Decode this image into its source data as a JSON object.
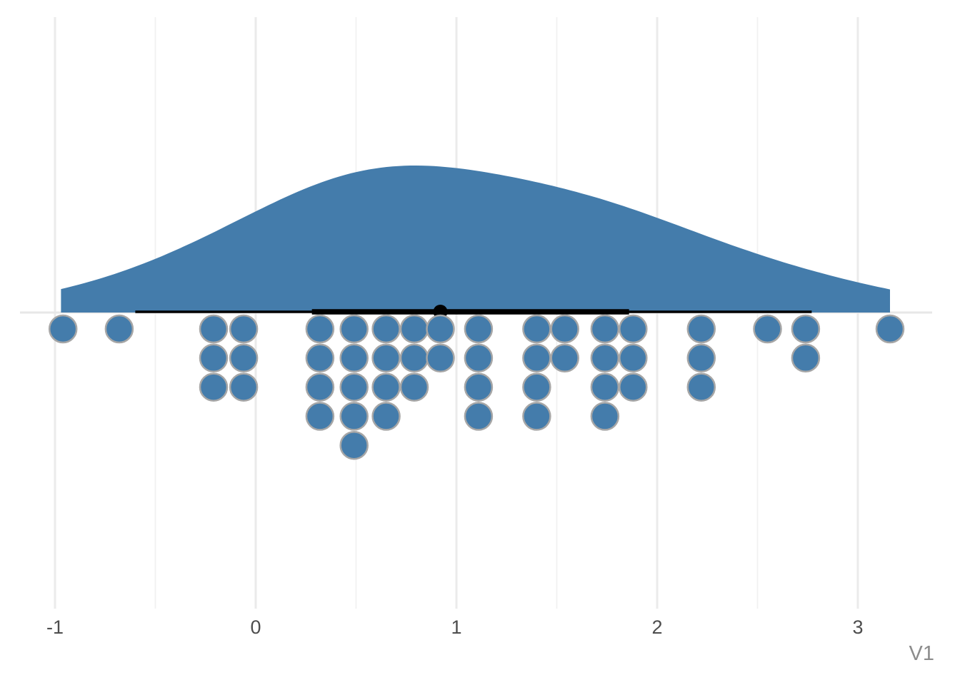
{
  "chart_data": {
    "type": "raincloud",
    "description": "Half-eye raincloud plot: density slab above, black point-interval on the baseline, stacked dotplot below",
    "title": "",
    "xlabel": "V1",
    "ylabel": "",
    "n": 50,
    "x_axis": {
      "ticks": [
        -1,
        0,
        1,
        2,
        3
      ],
      "tick_labels": [
        "-1",
        "0",
        "1",
        "2",
        "3"
      ],
      "minor_gridlines": [
        -0.5,
        0.5,
        1.5,
        2.5
      ],
      "range": [
        -1.17,
        3.37
      ],
      "grid": "vertical-only"
    },
    "density": {
      "x_min": -0.97,
      "x_max": 3.16,
      "peak_x": 0.77,
      "bandwidth": 0.52,
      "edge_height_fraction": 0.15
    },
    "point_interval": {
      "point": 0.92,
      "interval_66": [
        0.28,
        1.86
      ],
      "interval_95": [
        -0.6,
        2.77
      ]
    },
    "dots": [
      {
        "x": -0.96,
        "count": 1
      },
      {
        "x": -0.68,
        "count": 1
      },
      {
        "x": -0.21,
        "count": 3
      },
      {
        "x": -0.06,
        "count": 3
      },
      {
        "x": 0.32,
        "count": 4
      },
      {
        "x": 0.49,
        "count": 5
      },
      {
        "x": 0.65,
        "count": 4
      },
      {
        "x": 0.79,
        "count": 3
      },
      {
        "x": 0.92,
        "count": 2
      },
      {
        "x": 1.11,
        "count": 4
      },
      {
        "x": 1.4,
        "count": 4
      },
      {
        "x": 1.54,
        "count": 2
      },
      {
        "x": 1.74,
        "count": 4
      },
      {
        "x": 1.88,
        "count": 3
      },
      {
        "x": 2.22,
        "count": 3
      },
      {
        "x": 2.55,
        "count": 1
      },
      {
        "x": 2.74,
        "count": 2
      },
      {
        "x": 3.16,
        "count": 1
      }
    ],
    "legend": "none",
    "colors": {
      "slab": "#447CAB",
      "dot_fill": "#447CAB",
      "dot_stroke": "#A6A6A6",
      "interval": "#000000",
      "point": "#000000",
      "gridline_major": "#EBEBEB",
      "gridline_minor": "#F1F1F1",
      "baseline": "#E7E7E7",
      "tick_text": "#4D4D4D",
      "axis_title": "#8C8C8C",
      "background": "#FFFFFF"
    }
  }
}
